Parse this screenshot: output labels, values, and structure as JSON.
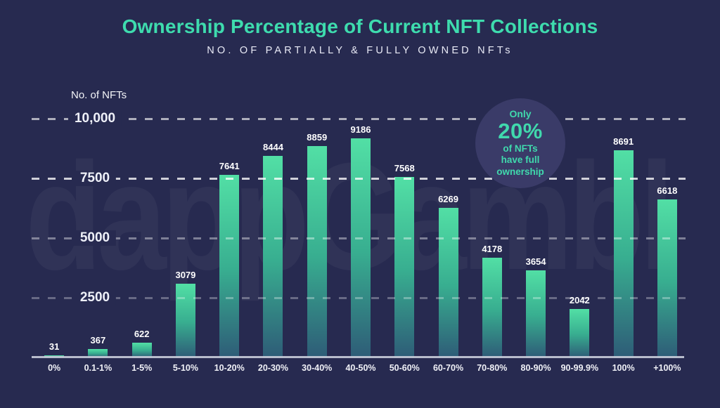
{
  "header": {
    "title": "Ownership Percentage of Current NFT Collections",
    "subtitle": "NO. OF PARTIALLY & FULLY OWNED NFTs"
  },
  "chart_data": {
    "type": "bar",
    "title": "Ownership Percentage of Current NFT Collections",
    "subtitle": "NO. OF PARTIALLY & FULLY OWNED NFTs",
    "ylabel": "No. of NFTs",
    "xlabel": "",
    "categories": [
      "0%",
      "0.1-1%",
      "1-5%",
      "5-10%",
      "10-20%",
      "20-30%",
      "30-40%",
      "40-50%",
      "50-60%",
      "60-70%",
      "70-80%",
      "80-90%",
      "90-99.9%",
      "100%",
      "+100%"
    ],
    "values": [
      31,
      367,
      622,
      3079,
      7641,
      8444,
      8859,
      9186,
      7568,
      6269,
      4178,
      3654,
      2042,
      8691,
      6618
    ],
    "yticks": [
      {
        "value": 10000,
        "label": "10,000"
      },
      {
        "value": 7500,
        "label": "7500"
      },
      {
        "value": 5000,
        "label": "5000"
      },
      {
        "value": 2500,
        "label": "2500"
      }
    ],
    "ylim": [
      0,
      10850
    ],
    "grid": "horizontal dashed",
    "legend": "none",
    "colors": {
      "background": "#272a50",
      "bar_gradient_top": "#52dfa5",
      "bar_gradient_mid": "#38ae90",
      "bar_gradient_bottom": "#2e5c77",
      "title_accent": "#3edcae",
      "axis_text": "#f0f1f7",
      "badge_background": "#3a3b68",
      "badge_text": "#40d9ad",
      "baseline": "#c9ccd9"
    }
  },
  "badge": {
    "lines": [
      "Only",
      "20%",
      "of NFTs",
      "have full",
      "ownership"
    ]
  },
  "watermark": {
    "text": "dappGambl"
  }
}
